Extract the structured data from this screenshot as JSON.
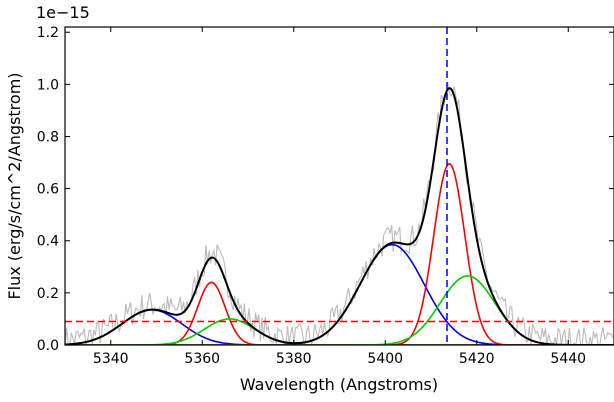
{
  "chart_data": {
    "type": "line",
    "xlabel": "Wavelength (Angstroms)",
    "ylabel": "Flux (erg/s/cm^2/Angstrom)",
    "offset_label": "1e−15",
    "xlim": [
      5330,
      5450
    ],
    "ylim": [
      0.0,
      1.22
    ],
    "x_ticks": [
      5340,
      5360,
      5380,
      5400,
      5420,
      5440
    ],
    "y_ticks": [
      0.0,
      0.2,
      0.4,
      0.6,
      0.8,
      1.0,
      1.2
    ],
    "x_tick_labels": [
      "5340",
      "5360",
      "5380",
      "5400",
      "5420",
      "5440"
    ],
    "y_tick_labels": [
      "0.0",
      "0.2",
      "0.4",
      "0.6",
      "0.8",
      "1.0",
      "1.2"
    ],
    "grid": false,
    "components": [
      {
        "color": "#0000ff",
        "center": 5349.0,
        "amplitude": 0.135,
        "sigma": 6.5
      },
      {
        "color": "#ff0000",
        "center": 5362.0,
        "amplitude": 0.24,
        "sigma": 3.0
      },
      {
        "color": "#00cc00",
        "center": 5366.0,
        "amplitude": 0.1,
        "sigma": 5.5
      },
      {
        "color": "#0000ff",
        "center": 5401.5,
        "amplitude": 0.385,
        "sigma": 7.0
      },
      {
        "color": "#ff0000",
        "center": 5414.0,
        "amplitude": 0.695,
        "sigma": 3.4
      },
      {
        "color": "#00cc00",
        "center": 5418.0,
        "amplitude": 0.265,
        "sigma": 6.0
      }
    ],
    "total_fit_color": "#000000",
    "observed_color": "#bbbbbb",
    "continuum_level": 0.09,
    "continuum_color": "#ff0000",
    "reference_line_x": 5413.5,
    "reference_line_color": "#0000ff"
  }
}
